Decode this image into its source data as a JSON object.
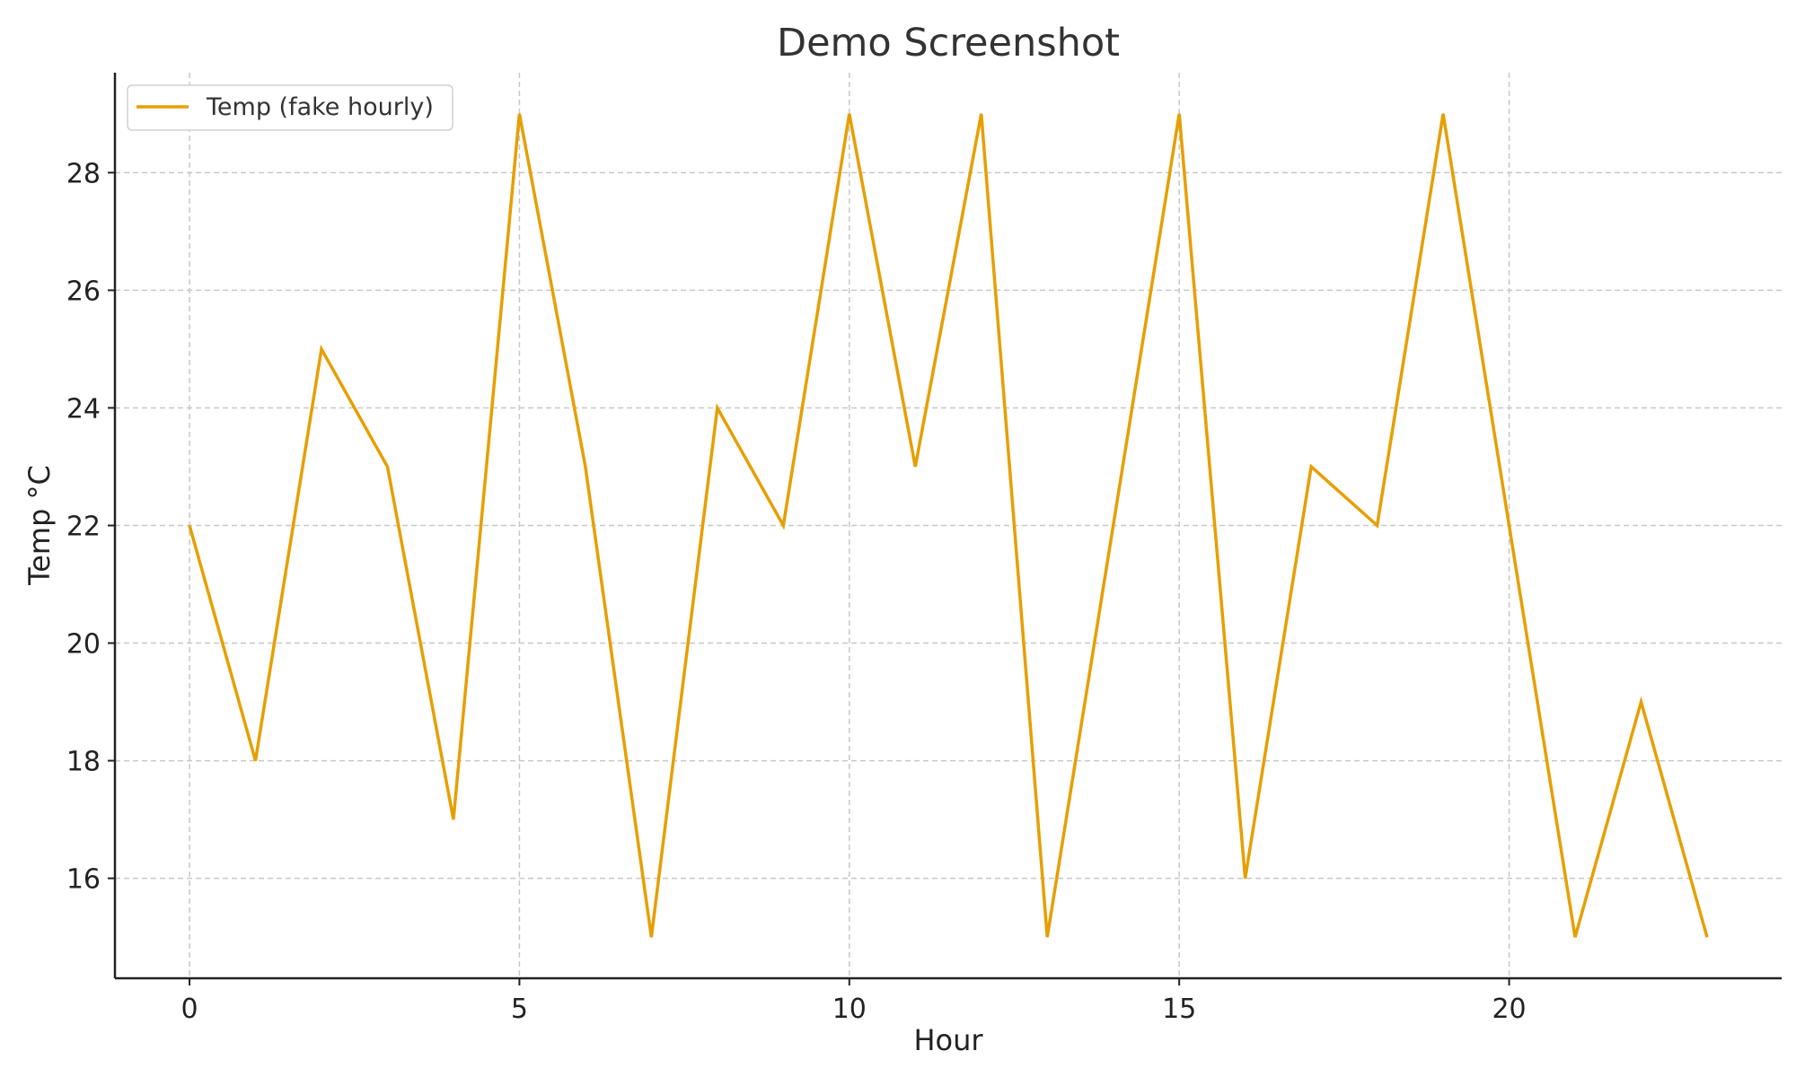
{
  "chart_data": {
    "type": "line",
    "title": "Demo Screenshot",
    "xlabel": "Hour",
    "ylabel": "Temp °C",
    "xlim": [
      -1.13,
      24.13
    ],
    "ylim": [
      14.3,
      29.7
    ],
    "xticks": [
      0,
      5,
      10,
      15,
      20
    ],
    "yticks": [
      16,
      18,
      20,
      22,
      24,
      26,
      28
    ],
    "grid": true,
    "legend_position": "top-left",
    "x": [
      0,
      1,
      2,
      3,
      4,
      5,
      6,
      7,
      8,
      9,
      10,
      11,
      12,
      13,
      14,
      15,
      16,
      17,
      18,
      19,
      20,
      21,
      22,
      23
    ],
    "series": [
      {
        "name": "Temp (fake hourly)",
        "color": "#E69F00",
        "values": [
          22,
          18,
          25,
          23,
          17,
          29,
          23,
          15,
          24,
          22,
          29,
          23,
          29,
          15,
          22,
          29,
          16,
          23,
          22,
          29,
          22,
          15,
          19,
          15
        ]
      }
    ]
  }
}
